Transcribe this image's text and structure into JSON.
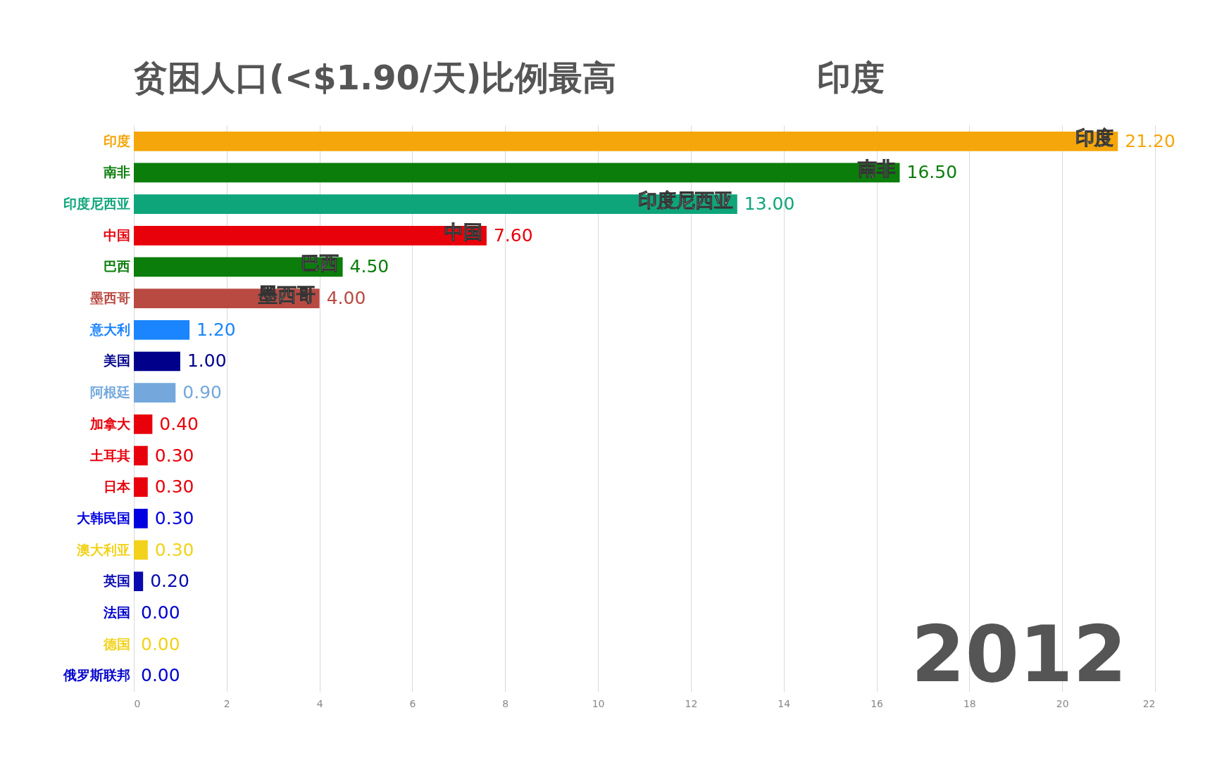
{
  "chart_data": {
    "type": "bar",
    "orientation": "horizontal",
    "title": "贫困人口(<$1.90/天)比例最高",
    "subtitle": "印度",
    "categories": [
      "印度",
      "南非",
      "印度尼西亚",
      "中国",
      "巴西",
      "墨西哥",
      "意大利",
      "美国",
      "阿根廷",
      "加拿大",
      "土耳其",
      "日本",
      "大韩民国",
      "澳大利亚",
      "英国",
      "法国",
      "德国",
      "俄罗斯联邦"
    ],
    "values": [
      21.2,
      16.5,
      13.0,
      7.6,
      4.5,
      4.0,
      1.2,
      1.0,
      0.9,
      0.4,
      0.3,
      0.3,
      0.3,
      0.3,
      0.2,
      0.0,
      0.0,
      0.0
    ],
    "value_labels": [
      "21.20",
      "16.50",
      "13.00",
      "7.60",
      "4.50",
      "4.00",
      "1.20",
      "1.00",
      "0.90",
      "0.40",
      "0.30",
      "0.30",
      "0.30",
      "0.30",
      "0.20",
      "0.00",
      "0.00",
      "0.00"
    ],
    "colors": [
      "#f5a60a",
      "#0a7d0a",
      "#0ea57a",
      "#e8000b",
      "#0a7d0a",
      "#b94a42",
      "#1a85ff",
      "#00008b",
      "#74a8dc",
      "#e8000b",
      "#e8000b",
      "#e8000b",
      "#0000e0",
      "#f2d21b",
      "#0a0ab0",
      "#0000cc",
      "#f2d21b",
      "#0000cc"
    ],
    "xlim": [
      0,
      22
    ],
    "xticks": [
      0,
      2,
      4,
      6,
      8,
      10,
      12,
      14,
      16,
      18,
      20,
      22
    ],
    "grid": "x",
    "annotations": [
      {
        "text": "印度",
        "x": 21.2,
        "y": "印度"
      },
      {
        "text": "南非",
        "x": 16.5,
        "y": "南非"
      },
      {
        "text": "印度尼西亚",
        "x": 13.0,
        "y": "印度尼西亚"
      },
      {
        "text": "中国",
        "x": 7.6,
        "y": "中国"
      },
      {
        "text": "巴西",
        "x": 4.5,
        "y": "巴西"
      },
      {
        "text": "墨西哥",
        "x": 4.0,
        "y": "墨西哥"
      },
      "2012"
    ]
  }
}
